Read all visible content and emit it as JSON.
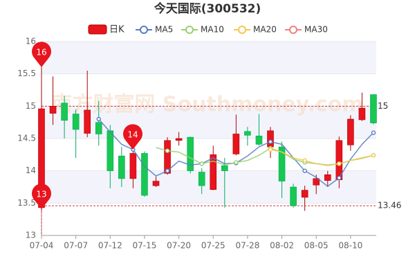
{
  "chart_data": {
    "type": "candlestick",
    "title": "今天国际(300532)",
    "watermark": "南方财富网 Southmoney.com",
    "categories": [
      "07-04",
      null,
      null,
      "07-07",
      null,
      null,
      "07-12",
      null,
      null,
      "07-15",
      null,
      null,
      "07-20",
      null,
      null,
      "07-25",
      null,
      null,
      "07-28",
      null,
      null,
      "08-02",
      null,
      null,
      "08-05",
      null,
      null,
      "08-10",
      null,
      null
    ],
    "candles": {
      "name": "日K",
      "up_color": "#e8141e",
      "down_color": "#18c850",
      "open": [
        13.43,
        14.89,
        15.05,
        14.88,
        14.58,
        14.75,
        14.62,
        14.23,
        13.88,
        14.27,
        13.77,
        13.96,
        14.47,
        14.52,
        13.98,
        13.71,
        14.08,
        14.26,
        14.61,
        14.54,
        14.37,
        14.37,
        13.75,
        13.59,
        13.78,
        13.85,
        13.86,
        14.4,
        14.79,
        15.18
      ],
      "high": [
        15.6,
        15.46,
        15.16,
        14.95,
        15.55,
        15.08,
        14.71,
        14.37,
        14.39,
        14.3,
        13.91,
        14.52,
        14.6,
        14.53,
        14.04,
        14.39,
        14.2,
        14.87,
        14.68,
        14.88,
        14.68,
        14.45,
        13.8,
        13.77,
        13.94,
        14.0,
        14.53,
        14.86,
        15.21,
        15.18
      ],
      "low": [
        13.38,
        14.71,
        14.5,
        14.2,
        14.52,
        14.39,
        13.73,
        13.75,
        13.73,
        13.6,
        13.75,
        13.94,
        14.39,
        13.96,
        13.64,
        13.7,
        13.43,
        14.24,
        14.39,
        14.39,
        14.2,
        13.58,
        13.43,
        13.38,
        13.64,
        13.75,
        13.73,
        14.31,
        14.77,
        14.72
      ],
      "close": [
        14.96,
        15.0,
        14.78,
        14.64,
        14.94,
        14.57,
        14.0,
        13.88,
        14.27,
        13.62,
        13.84,
        14.47,
        14.5,
        14.0,
        13.77,
        14.25,
        14.0,
        14.57,
        14.55,
        14.41,
        14.62,
        13.84,
        13.46,
        13.7,
        13.88,
        13.94,
        14.47,
        14.8,
        14.97,
        14.74
      ]
    },
    "series": [
      {
        "name": "MA5",
        "color": "#5b7bc4",
        "values": [
          null,
          null,
          null,
          null,
          null,
          14.8,
          14.6,
          14.41,
          14.33,
          14.07,
          13.92,
          14.0,
          14.15,
          14.09,
          14.11,
          14.2,
          14.11,
          14.12,
          14.23,
          14.37,
          14.45,
          14.41,
          14.2,
          14.0,
          13.9,
          13.76,
          13.89,
          14.18,
          14.41,
          14.59
        ]
      },
      {
        "name": "MA10",
        "color": "#98d070",
        "values": [
          null,
          null,
          null,
          null,
          null,
          null,
          null,
          null,
          null,
          null,
          14.36,
          14.31,
          14.29,
          14.2,
          14.11,
          14.15,
          14.09,
          14.13,
          14.16,
          14.24,
          14.35,
          14.29,
          14.18,
          14.13,
          14.11,
          14.09,
          14.11,
          14.16,
          14.2,
          14.24
        ]
      },
      {
        "name": "MA20",
        "color": "#f5c84a",
        "values": [
          null,
          null,
          null,
          null,
          null,
          null,
          null,
          null,
          null,
          null,
          null,
          null,
          null,
          null,
          null,
          null,
          null,
          null,
          null,
          null,
          14.33,
          14.29,
          14.2,
          14.16,
          14.11,
          14.08,
          14.11,
          14.16,
          14.19,
          14.24
        ]
      },
      {
        "name": "MA30",
        "color": "#f08080",
        "values": [
          null,
          null,
          null,
          null,
          null,
          null,
          null,
          null,
          null,
          null,
          null,
          null,
          null,
          null,
          null,
          null,
          null,
          null,
          null,
          null,
          null,
          null,
          null,
          null,
          null,
          null,
          null,
          null,
          null,
          null
        ]
      }
    ],
    "ylim": [
      13,
      16
    ],
    "yticks": [
      13,
      13.5,
      14,
      14.5,
      15,
      15.5,
      16
    ],
    "ref_lines": [
      15,
      13.46
    ],
    "pins": [
      16,
      14,
      13
    ],
    "grid": true
  }
}
